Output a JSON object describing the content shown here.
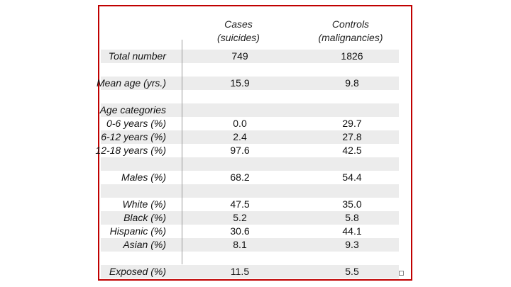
{
  "table": {
    "header": {
      "cases": [
        "Cases",
        "(suicides)"
      ],
      "controls": [
        "Controls",
        "(malignancies)"
      ]
    },
    "rows": [
      {
        "label": "Total number",
        "cases": "749",
        "controls": "1826",
        "shade": true
      },
      {
        "label": "",
        "cases": "",
        "controls": "",
        "shade": false
      },
      {
        "label": "Mean age (yrs.)",
        "cases": "15.9",
        "controls": "9.8",
        "shade": true
      },
      {
        "label": "",
        "cases": "",
        "controls": "",
        "shade": false
      },
      {
        "label": "Age categories",
        "cases": "",
        "controls": "",
        "shade": true
      },
      {
        "label": "0-6 years (%)",
        "cases": "0.0",
        "controls": "29.7",
        "shade": false
      },
      {
        "label": "6-12 years (%)",
        "cases": "2.4",
        "controls": "27.8",
        "shade": true
      },
      {
        "label": "12-18 years (%)",
        "cases": "97.6",
        "controls": "42.5",
        "shade": false
      },
      {
        "label": "",
        "cases": "",
        "controls": "",
        "shade": true
      },
      {
        "label": "Males (%)",
        "cases": "68.2",
        "controls": "54.4",
        "shade": false
      },
      {
        "label": "",
        "cases": "",
        "controls": "",
        "shade": true
      },
      {
        "label": "White (%)",
        "cases": "47.5",
        "controls": "35.0",
        "shade": false
      },
      {
        "label": "Black (%)",
        "cases": "5.2",
        "controls": "5.8",
        "shade": true
      },
      {
        "label": "Hispanic (%)",
        "cases": "30.6",
        "controls": "44.1",
        "shade": false
      },
      {
        "label": "Asian (%)",
        "cases": "8.1",
        "controls": "9.3",
        "shade": true
      },
      {
        "label": "",
        "cases": "",
        "controls": "",
        "shade": false
      },
      {
        "label": "Exposed (%)",
        "cases": "11.5",
        "controls": "5.5",
        "shade": true
      }
    ]
  }
}
